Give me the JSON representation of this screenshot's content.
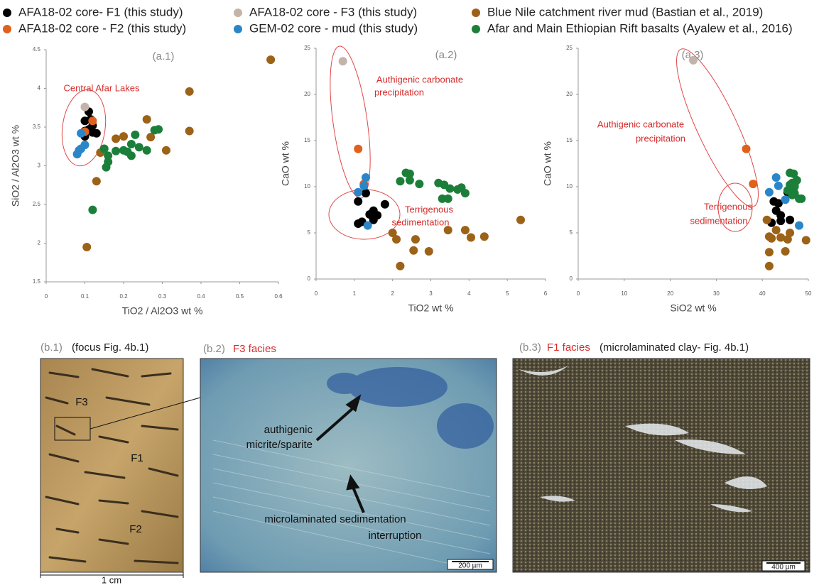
{
  "chart_data": [
    {
      "type": "scatter",
      "xlabel": "TiO2 / Al2O3 wt %",
      "ylabel": "SiO2 / Al2O3 wt %",
      "xlim": [
        0,
        0.6
      ],
      "xticks": [
        0,
        0.1,
        0.2,
        0.3,
        0.4,
        0.5,
        0.6
      ],
      "ylim": [
        1.5,
        4.5
      ],
      "yticks": [
        1.5,
        2,
        2.5,
        3,
        3.5,
        4,
        4.5
      ],
      "annotations": [
        "(a.1)",
        "Central Afar Lakes"
      ],
      "series": [
        {
          "name": "AFA18-02  core- F1 (this study)",
          "color": "#000000",
          "x": [
            0.1,
            0.11,
            0.1,
            0.11,
            0.12,
            0.13,
            0.1,
            0.12,
            0.115
          ],
          "values": [
            3.58,
            3.7,
            3.45,
            3.47,
            3.43,
            3.42,
            3.38,
            3.52,
            3.6
          ]
        },
        {
          "name": "AFA18-02 core - F2 (this study)",
          "color": "#e0601c",
          "x": [
            0.12,
            0.1
          ],
          "values": [
            3.58,
            3.44
          ]
        },
        {
          "name": "AFA18-02 core - F3 (this study)",
          "color": "#c4b3ab",
          "x": [
            0.1
          ],
          "values": [
            3.76
          ]
        },
        {
          "name": "GEM-02 core - mud (this study)",
          "color": "#2a86c8",
          "x": [
            0.09,
            0.08,
            0.09,
            0.1,
            0.085
          ],
          "values": [
            3.42,
            3.15,
            3.22,
            3.27,
            3.2
          ]
        },
        {
          "name": "Blue Nile catchment river mud (Bastian et al., 2019)",
          "color": "#9c6218",
          "x": [
            0.58,
            0.37,
            0.37,
            0.26,
            0.27,
            0.31,
            0.2,
            0.18,
            0.14,
            0.13,
            0.105
          ],
          "values": [
            4.37,
            3.96,
            3.45,
            3.6,
            3.37,
            3.2,
            3.38,
            3.35,
            3.17,
            2.8,
            1.95
          ]
        },
        {
          "name": "Afar and Main Ethiopian Rift basalts (Ayalew et al., 2016)",
          "color": "#1b7f3a",
          "x": [
            0.15,
            0.16,
            0.16,
            0.155,
            0.18,
            0.21,
            0.22,
            0.23,
            0.22,
            0.24,
            0.26,
            0.28,
            0.29,
            0.12,
            0.2
          ],
          "values": [
            3.22,
            3.13,
            3.05,
            2.98,
            3.19,
            3.18,
            3.28,
            3.4,
            3.13,
            3.24,
            3.2,
            3.46,
            3.47,
            2.43,
            3.2
          ]
        }
      ]
    },
    {
      "type": "scatter",
      "xlabel": "TiO2 wt %",
      "ylabel": "CaO wt %",
      "xlim": [
        0,
        6
      ],
      "xticks": [
        0,
        1,
        2,
        3,
        4,
        5,
        6
      ],
      "ylim": [
        0,
        25
      ],
      "yticks": [
        0,
        5,
        10,
        15,
        20,
        25
      ],
      "annotations": [
        "(a.2)",
        "Authigenic carbonate",
        "precipitation",
        "Terrigenous",
        "sedimentation"
      ],
      "series": [
        {
          "color": "#000000",
          "x": [
            1.3,
            1.1,
            1.2,
            1.1,
            1.5,
            1.6,
            1.8,
            1.5,
            1.4
          ],
          "values": [
            9.3,
            8.4,
            6.2,
            6.0,
            7.4,
            6.9,
            8.1,
            6.4,
            7
          ]
        },
        {
          "color": "#e0601c",
          "x": [
            1.1,
            1.25
          ],
          "values": [
            14.1,
            10.3
          ]
        },
        {
          "color": "#c4b3ab",
          "x": [
            0.7
          ],
          "values": [
            23.6
          ]
        },
        {
          "color": "#2a86c8",
          "x": [
            1.3,
            1.1,
            1.35,
            1.25
          ],
          "values": [
            11.0,
            9.4,
            5.8,
            10.1
          ]
        },
        {
          "color": "#9c6218",
          "x": [
            5.35,
            4.4,
            4.05,
            3.9,
            3.45,
            2.95,
            2.55,
            2.6,
            2.2,
            2.0,
            2.1
          ],
          "values": [
            6.4,
            4.6,
            4.5,
            5.3,
            5.3,
            3.0,
            3.1,
            4.3,
            1.4,
            5.0,
            4.3
          ]
        },
        {
          "color": "#1b7f3a",
          "x": [
            2.35,
            2.45,
            2.2,
            2.45,
            2.7,
            3.2,
            3.35,
            3.5,
            3.8,
            3.9,
            3.3,
            3.45,
            3.7
          ],
          "values": [
            11.5,
            11.4,
            10.6,
            10.7,
            10.3,
            10.4,
            10.2,
            9.8,
            9.9,
            9.3,
            8.7,
            8.7,
            9.7
          ]
        }
      ]
    },
    {
      "type": "scatter",
      "xlabel": "SiO2 wt %",
      "ylabel": "CaO wt %",
      "xlim": [
        0,
        50
      ],
      "xticks": [
        0,
        10,
        20,
        30,
        40,
        50
      ],
      "ylim": [
        0,
        25
      ],
      "yticks": [
        0,
        5,
        10,
        15,
        20,
        25
      ],
      "annotations": [
        "(a.3)",
        "Authigenic carbonate",
        "precipitation",
        "Terrigenous",
        "sedimentation"
      ],
      "series": [
        {
          "color": "#000000",
          "x": [
            42,
            43,
            43.5,
            44,
            44,
            45.5,
            46,
            42.5
          ],
          "values": [
            6.1,
            7.4,
            8.2,
            6.9,
            6.3,
            9.4,
            6.4,
            8.4
          ]
        },
        {
          "color": "#e0601c",
          "x": [
            36.5,
            38
          ],
          "values": [
            14.1,
            10.3
          ]
        },
        {
          "color": "#c4b3ab",
          "x": [
            25
          ],
          "values": [
            23.7
          ]
        },
        {
          "color": "#2a86c8",
          "x": [
            43,
            41.5,
            43.5,
            45,
            48
          ],
          "values": [
            11.0,
            9.4,
            10.1,
            8.6,
            5.8
          ]
        },
        {
          "color": "#9c6218",
          "x": [
            49.5,
            46,
            45,
            45.5,
            43,
            42,
            41.5,
            41.5,
            41,
            44,
            41.5
          ],
          "values": [
            4.2,
            5.0,
            3.0,
            4.3,
            5.3,
            4.4,
            2.9,
            1.4,
            6.4,
            4.5,
            4.6
          ]
        },
        {
          "color": "#1b7f3a",
          "x": [
            46,
            46.8,
            47.5,
            46.5,
            47,
            46,
            45.5,
            47,
            48,
            48.5,
            46,
            47,
            46.5
          ],
          "values": [
            11.5,
            11.4,
            10.7,
            10.4,
            10,
            9.8,
            9.6,
            9.3,
            8.7,
            8.7,
            10.2,
            10.2,
            9.1
          ]
        }
      ]
    }
  ],
  "panels": [
    {
      "label": "(b.1)",
      "note": "(focus Fig. 4b.1)",
      "facies": [
        "F3",
        "F1",
        "F2"
      ],
      "scale": "1 cm"
    },
    {
      "label": "(b.2)",
      "title": "F3 facies",
      "annotations": [
        "authigenic",
        "micrite/sparite",
        "microlaminated sedimentation",
        "interruption"
      ],
      "scale": "200 µm"
    },
    {
      "label": "(b.3)",
      "title": "F1 facies",
      "note": "(microlaminated clay- Fig. 4b.1)",
      "scale": "400 µm"
    }
  ]
}
